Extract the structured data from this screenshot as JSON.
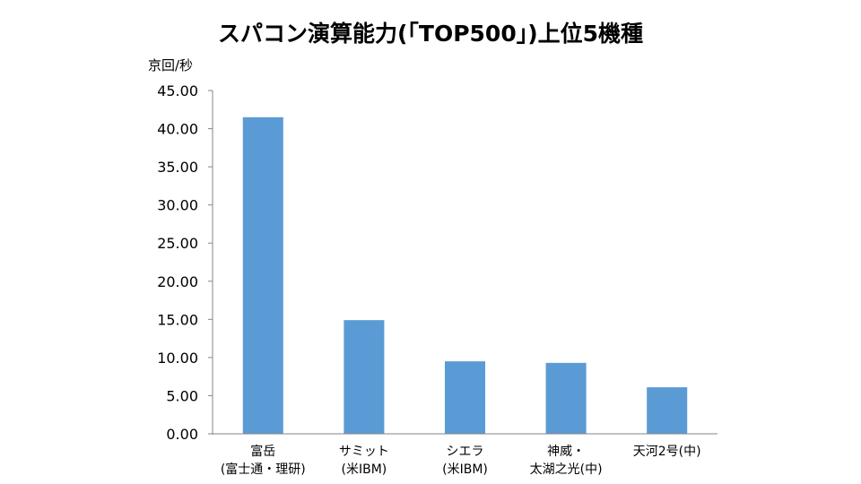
{
  "chart_data": {
    "type": "bar",
    "title": "スパコン演算能力(「TOP500」)上位5機種",
    "ylabel": "京回/秒",
    "xlabel": "",
    "ylim": [
      0,
      45
    ],
    "ytick_labels": [
      "0.00",
      "5.00",
      "10.00",
      "15.00",
      "20.00",
      "25.00",
      "30.00",
      "35.00",
      "40.00",
      "45.00"
    ],
    "categories": [
      [
        "富岳",
        "(富士通・理研)"
      ],
      [
        "サミット",
        "(米IBM)"
      ],
      [
        "シエラ",
        "(米IBM)"
      ],
      [
        "神威・",
        "太湖之光(中)"
      ],
      [
        "天河2号(中)"
      ]
    ],
    "values": [
      41.5,
      14.9,
      9.5,
      9.3,
      6.1
    ],
    "bar_color": "#5b9bd5",
    "grid": false,
    "legend": "none"
  }
}
